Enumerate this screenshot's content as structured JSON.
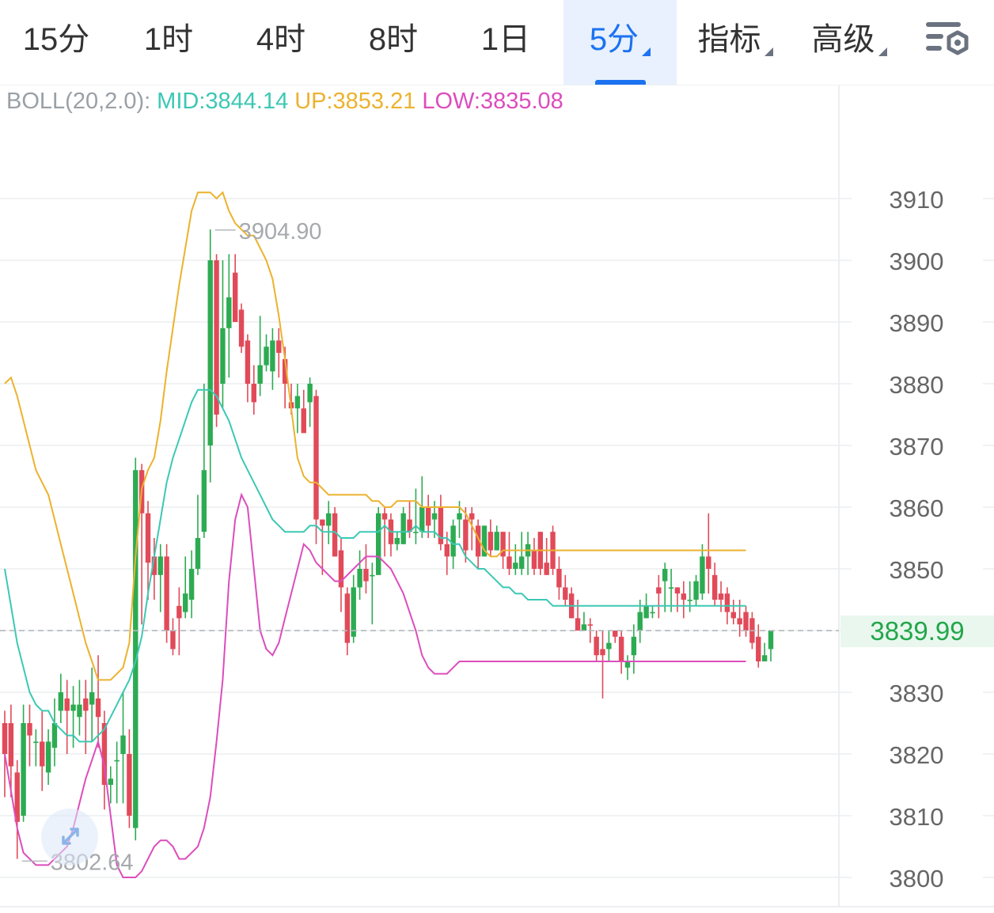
{
  "tabs": [
    {
      "id": "15m",
      "label": "15分",
      "dropdown": false,
      "active": false
    },
    {
      "id": "1h",
      "label": "1时",
      "dropdown": false,
      "active": false
    },
    {
      "id": "4h",
      "label": "4时",
      "dropdown": false,
      "active": false
    },
    {
      "id": "8h",
      "label": "8时",
      "dropdown": false,
      "active": false
    },
    {
      "id": "1d",
      "label": "1日",
      "dropdown": false,
      "active": false
    },
    {
      "id": "5m",
      "label": "5分",
      "dropdown": true,
      "active": true
    },
    {
      "id": "ind",
      "label": "指标",
      "dropdown": true,
      "active": false
    },
    {
      "id": "adv",
      "label": "高级",
      "dropdown": true,
      "active": false
    }
  ],
  "settings_icon": "chart-settings-icon",
  "indicator": {
    "name": "BOLL(20,2.0):",
    "mid": "MID:3844.14",
    "up": "UP:3853.21",
    "low": "LOW:3835.08"
  },
  "current_price": "3839.99",
  "colors": {
    "up_candle": "#2dab52",
    "down_candle": "#e14a59",
    "mid": "#3cc8b4",
    "upper": "#ecb22e",
    "lower": "#dc4dbc",
    "accent": "#1c72f0"
  },
  "chart_data": {
    "type": "candlestick",
    "ylim": [
      3797,
      3922
    ],
    "y_ticks": [
      "3910",
      "3900",
      "3890",
      "3880",
      "3870",
      "3860",
      "3850",
      "3840",
      "3830",
      "3820",
      "3810",
      "3800"
    ],
    "high_label": "3904.90",
    "low_label": "3802.64",
    "candles": [
      [
        3820,
        3825,
        3813,
        3827,
        "d"
      ],
      [
        3825,
        3818,
        3813,
        3828,
        "d"
      ],
      [
        3817,
        3809,
        3803,
        3819,
        "d"
      ],
      [
        3810,
        3825,
        3809,
        3828,
        "u"
      ],
      [
        3825,
        3823,
        3818,
        3828,
        "d"
      ],
      [
        3822,
        3822,
        3818,
        3824,
        "u"
      ],
      [
        3822,
        3818,
        3814,
        3827,
        "d"
      ],
      [
        3817,
        3822,
        3815,
        3824,
        "u"
      ],
      [
        3821,
        3825,
        3818,
        3829,
        "u"
      ],
      [
        3827,
        3830,
        3825,
        3833,
        "u"
      ],
      [
        3829,
        3827,
        3820,
        3832,
        "d"
      ],
      [
        3827,
        3828,
        3821,
        3831,
        "u"
      ],
      [
        3826,
        3828,
        3823,
        3832,
        "u"
      ],
      [
        3829,
        3827,
        3820,
        3832,
        "d"
      ],
      [
        3828,
        3830,
        3822,
        3834,
        "u"
      ],
      [
        3829,
        3826,
        3821,
        3836,
        "d"
      ],
      [
        3825,
        3815,
        3811,
        3827,
        "d"
      ],
      [
        3815,
        3816,
        3812,
        3818,
        "u"
      ],
      [
        3819,
        3819,
        3812,
        3822,
        "u"
      ],
      [
        3820,
        3823,
        3812,
        3830,
        "u"
      ],
      [
        3820,
        3810,
        3808,
        3824,
        "d"
      ],
      [
        3808,
        3866,
        3806,
        3868,
        "u"
      ],
      [
        3866,
        3859,
        3841,
        3867,
        "d"
      ],
      [
        3859,
        3851,
        3845,
        3861,
        "d"
      ],
      [
        3852,
        3849,
        3845,
        3855,
        "d"
      ],
      [
        3849,
        3852,
        3843,
        3854,
        "u"
      ],
      [
        3852,
        3840,
        3838,
        3854,
        "d"
      ],
      [
        3840,
        3837,
        3836,
        3842,
        "d"
      ],
      [
        3844,
        3842,
        3836,
        3847,
        "d"
      ],
      [
        3843,
        3846,
        3842,
        3852,
        "u"
      ],
      [
        3845,
        3850,
        3842,
        3853,
        "u"
      ],
      [
        3850,
        3855,
        3849,
        3862,
        "u"
      ],
      [
        3856,
        3866,
        3855,
        3880,
        "u"
      ],
      [
        3870,
        3900,
        3864,
        3905,
        "u"
      ],
      [
        3900,
        3875,
        3873,
        3901,
        "d"
      ],
      [
        3880,
        3889,
        3876,
        3900,
        "u"
      ],
      [
        3889,
        3894,
        3881,
        3901,
        "u"
      ],
      [
        3898,
        3890,
        3890,
        3901,
        "d"
      ],
      [
        3892,
        3886,
        3885,
        3893,
        "d"
      ],
      [
        3887,
        3880,
        3877,
        3888,
        "d"
      ],
      [
        3880,
        3877,
        3875,
        3883,
        "d"
      ],
      [
        3880,
        3883,
        3878,
        3891,
        "u"
      ],
      [
        3883,
        3886,
        3882,
        3888,
        "u"
      ],
      [
        3882,
        3887,
        3879,
        3889,
        "u"
      ],
      [
        3887,
        3885,
        3881,
        3889,
        "d"
      ],
      [
        3884,
        3880,
        3876,
        3886,
        "d"
      ],
      [
        3877,
        3876,
        3875,
        3880,
        "d"
      ],
      [
        3876,
        3878,
        3872,
        3880,
        "u"
      ],
      [
        3876,
        3872,
        3872,
        3879,
        "d"
      ],
      [
        3877,
        3880,
        3873,
        3881,
        "u"
      ],
      [
        3878,
        3858,
        3854,
        3879,
        "d"
      ],
      [
        3858,
        3857,
        3849,
        3858,
        "d"
      ],
      [
        3857,
        3859,
        3854,
        3861,
        "u"
      ],
      [
        3859,
        3852,
        3852,
        3860,
        "d"
      ],
      [
        3853,
        3847,
        3843,
        3855,
        "d"
      ],
      [
        3846,
        3838,
        3836,
        3847,
        "d"
      ],
      [
        3839,
        3847,
        3838,
        3849,
        "u"
      ],
      [
        3847,
        3850,
        3845,
        3853,
        "u"
      ],
      [
        3850,
        3848,
        3846,
        3854,
        "d"
      ],
      [
        3849,
        3849,
        3841,
        3851,
        "u"
      ],
      [
        3849,
        3859,
        3849,
        3860,
        "u"
      ],
      [
        3859,
        3858,
        3852,
        3860,
        "d"
      ],
      [
        3858,
        3854,
        3852,
        3859,
        "d"
      ],
      [
        3854,
        3855,
        3853,
        3856,
        "u"
      ],
      [
        3854,
        3859,
        3854,
        3860,
        "u"
      ],
      [
        3858,
        3856,
        3855,
        3861,
        "d"
      ],
      [
        3856,
        3856,
        3854,
        3863,
        "u"
      ],
      [
        3856,
        3860,
        3855,
        3865,
        "u"
      ],
      [
        3860,
        3857,
        3855,
        3862,
        "d"
      ],
      [
        3858,
        3859,
        3855,
        3861,
        "u"
      ],
      [
        3860,
        3854,
        3853,
        3862,
        "d"
      ],
      [
        3854,
        3852,
        3849,
        3856,
        "d"
      ],
      [
        3852,
        3857,
        3850,
        3858,
        "u"
      ],
      [
        3858,
        3859,
        3855,
        3861,
        "u"
      ],
      [
        3858,
        3853,
        3851,
        3860,
        "d"
      ],
      [
        3859,
        3858,
        3853,
        3860,
        "d"
      ],
      [
        3857,
        3852,
        3850,
        3858,
        "d"
      ],
      [
        3852,
        3857,
        3852,
        3857,
        "u"
      ],
      [
        3856,
        3853,
        3852,
        3858,
        "d"
      ],
      [
        3853,
        3856,
        3853,
        3857,
        "u"
      ],
      [
        3856,
        3852,
        3850,
        3856,
        "d"
      ],
      [
        3852,
        3850,
        3849,
        3856,
        "d"
      ],
      [
        3850,
        3851,
        3849,
        3854,
        "u"
      ],
      [
        3850,
        3852,
        3849,
        3856,
        "u"
      ],
      [
        3852,
        3854,
        3849,
        3856,
        "u"
      ],
      [
        3853,
        3850,
        3849,
        3855,
        "d"
      ],
      [
        3856,
        3850,
        3849,
        3856,
        "d"
      ],
      [
        3851,
        3849,
        3849,
        3855,
        "d"
      ],
      [
        3856,
        3850,
        3849,
        3857,
        "d"
      ],
      [
        3850,
        3847,
        3845,
        3852,
        "d"
      ],
      [
        3847,
        3845,
        3844,
        3849,
        "d"
      ],
      [
        3846,
        3842,
        3842,
        3847,
        "d"
      ],
      [
        3842,
        3840,
        3840,
        3845,
        "d"
      ],
      [
        3840,
        3841,
        3840,
        3843,
        "u"
      ],
      [
        3841,
        3841,
        3838,
        3842,
        "d"
      ],
      [
        3839,
        3836,
        3835,
        3840,
        "d"
      ],
      [
        3837,
        3836,
        3829,
        3840,
        "d"
      ],
      [
        3837,
        3838,
        3835,
        3840,
        "u"
      ],
      [
        3840,
        3839,
        3838,
        3840,
        "d"
      ],
      [
        3839,
        3835,
        3833,
        3840,
        "d"
      ],
      [
        3834,
        3835,
        3832,
        3836,
        "u"
      ],
      [
        3836,
        3839,
        3833,
        3841,
        "u"
      ],
      [
        3840,
        3843,
        3838,
        3845,
        "u"
      ],
      [
        3842,
        3844,
        3842,
        3846,
        "u"
      ],
      [
        3843,
        3843,
        3842,
        3844,
        "u"
      ],
      [
        3847,
        3846,
        3842,
        3849,
        "d"
      ],
      [
        3848,
        3850,
        3843,
        3851,
        "u"
      ],
      [
        3847,
        3847,
        3843,
        3850,
        "u"
      ],
      [
        3846,
        3847,
        3843,
        3847,
        "d"
      ],
      [
        3845,
        3846,
        3842,
        3848,
        "d"
      ],
      [
        3845,
        3845,
        3843,
        3848,
        "u"
      ],
      [
        3845,
        3848,
        3844,
        3849,
        "u"
      ],
      [
        3846,
        3852,
        3845,
        3854,
        "u"
      ],
      [
        3852,
        3850,
        3846,
        3859,
        "d"
      ],
      [
        3849,
        3845,
        3844,
        3851,
        "d"
      ],
      [
        3845,
        3846,
        3843,
        3848,
        "d"
      ],
      [
        3846,
        3843,
        3841,
        3847,
        "d"
      ],
      [
        3843,
        3842,
        3841,
        3845,
        "d"
      ],
      [
        3842,
        3841,
        3839,
        3845,
        "d"
      ],
      [
        3843,
        3840,
        3839,
        3844,
        "d"
      ],
      [
        3842,
        3838,
        3837,
        3843,
        "d"
      ],
      [
        3839,
        3835,
        3834,
        3841,
        "d"
      ],
      [
        3835,
        3836,
        3835,
        3838,
        "u"
      ],
      [
        3837,
        3840,
        3835,
        3840,
        "u"
      ]
    ],
    "series": [
      {
        "name": "MID",
        "values": [
          3850,
          3844,
          3838,
          3834,
          3830,
          3828,
          3827,
          3827,
          3825,
          3824,
          3823,
          3823,
          3822,
          3822,
          3822,
          3823,
          3824,
          3826,
          3828,
          3830,
          3832,
          3835,
          3839,
          3846,
          3852,
          3858,
          3864,
          3868,
          3871,
          3874,
          3877,
          3879,
          3879,
          3879,
          3878,
          3876,
          3874,
          3871,
          3868,
          3866,
          3864,
          3862,
          3860,
          3858,
          3857,
          3856,
          3856,
          3856,
          3856,
          3857,
          3857,
          3856,
          3856,
          3856,
          3855,
          3855,
          3855,
          3856,
          3856,
          3856,
          3856,
          3857,
          3856,
          3856,
          3856,
          3856,
          3857,
          3856,
          3856,
          3856,
          3855,
          3855,
          3854,
          3854,
          3852,
          3851,
          3850,
          3850,
          3849,
          3848,
          3847,
          3847,
          3846,
          3846,
          3845,
          3845,
          3845,
          3845,
          3844,
          3844,
          3844,
          3844,
          3844,
          3844,
          3844,
          3844,
          3844,
          3844,
          3844,
          3844,
          3844,
          3844,
          3844,
          3844,
          3844,
          3844,
          3844,
          3844,
          3844,
          3844,
          3844,
          3844,
          3844,
          3844,
          3844,
          3844,
          3844,
          3844,
          3844,
          3844
        ]
      },
      {
        "name": "UP",
        "values": [
          3880,
          3881,
          3878,
          3874,
          3870,
          3866,
          3864,
          3862,
          3858,
          3854,
          3850,
          3846,
          3842,
          3838,
          3835,
          3832,
          3832,
          3832,
          3833,
          3834,
          3838,
          3852,
          3863,
          3866,
          3868,
          3874,
          3882,
          3889,
          3896,
          3902,
          3908,
          3911,
          3911,
          3911,
          3910,
          3911,
          3908,
          3906,
          3905,
          3904,
          3904,
          3902,
          3900,
          3897,
          3891,
          3884,
          3876,
          3868,
          3865,
          3864,
          3864,
          3863,
          3862,
          3862,
          3862,
          3862,
          3862,
          3862,
          3862,
          3861,
          3861,
          3860,
          3860,
          3861,
          3861,
          3861,
          3861,
          3860,
          3860,
          3860,
          3860,
          3860,
          3860,
          3860,
          3859,
          3857,
          3855,
          3853,
          3852,
          3852,
          3853,
          3853,
          3853,
          3853,
          3853,
          3853,
          3853,
          3853,
          3853,
          3853,
          3853,
          3853,
          3853,
          3853,
          3853,
          3853,
          3853,
          3853,
          3853,
          3853,
          3853,
          3853,
          3853,
          3853,
          3853,
          3853,
          3853,
          3853,
          3853,
          3853,
          3853,
          3853,
          3853,
          3853,
          3853,
          3853,
          3853,
          3853,
          3853,
          3853
        ]
      },
      {
        "name": "LOW",
        "values": [
          3820,
          3814,
          3808,
          3804,
          3803,
          3802,
          3802,
          3802,
          3803,
          3804,
          3805,
          3808,
          3812,
          3816,
          3819,
          3822,
          3818,
          3810,
          3802,
          3800,
          3800,
          3800,
          3801,
          3803,
          3805,
          3806,
          3806,
          3805,
          3803,
          3803,
          3804,
          3805,
          3808,
          3813,
          3822,
          3832,
          3848,
          3858,
          3862,
          3860,
          3850,
          3840,
          3837,
          3836,
          3838,
          3842,
          3846,
          3850,
          3854,
          3853,
          3851,
          3850,
          3849,
          3848,
          3848,
          3849,
          3850,
          3851,
          3852,
          3852,
          3852,
          3851,
          3850,
          3848,
          3846,
          3843,
          3840,
          3836,
          3834,
          3833,
          3833,
          3833,
          3834,
          3835,
          3835,
          3835,
          3835,
          3835,
          3835,
          3835,
          3835,
          3835,
          3835,
          3835,
          3835,
          3835,
          3835,
          3835,
          3835,
          3835,
          3835,
          3835,
          3835,
          3835,
          3835,
          3835,
          3835,
          3835,
          3835,
          3835,
          3835,
          3835,
          3835,
          3835,
          3835,
          3835,
          3835,
          3835,
          3835,
          3835,
          3835,
          3835,
          3835,
          3835,
          3835,
          3835,
          3835,
          3835,
          3835,
          3835
        ]
      }
    ]
  }
}
